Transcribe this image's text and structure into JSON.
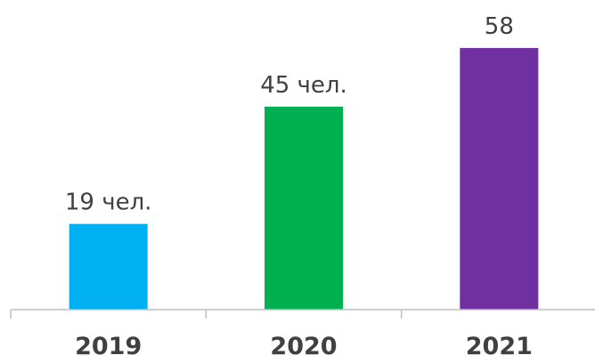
{
  "chart_data": {
    "type": "bar",
    "categories": [
      "2019",
      "2020",
      "2021"
    ],
    "values": [
      19,
      45,
      58
    ],
    "data_labels": [
      "19 чел.",
      "45 чел.",
      "58"
    ],
    "colors": [
      "#00b0f0",
      "#00b050",
      "#7030a0"
    ],
    "axis_color": "#bfbfbf",
    "title": "",
    "xlabel": "",
    "ylabel": "",
    "ylim": [
      0,
      64
    ],
    "grid": false,
    "legend": "none"
  }
}
